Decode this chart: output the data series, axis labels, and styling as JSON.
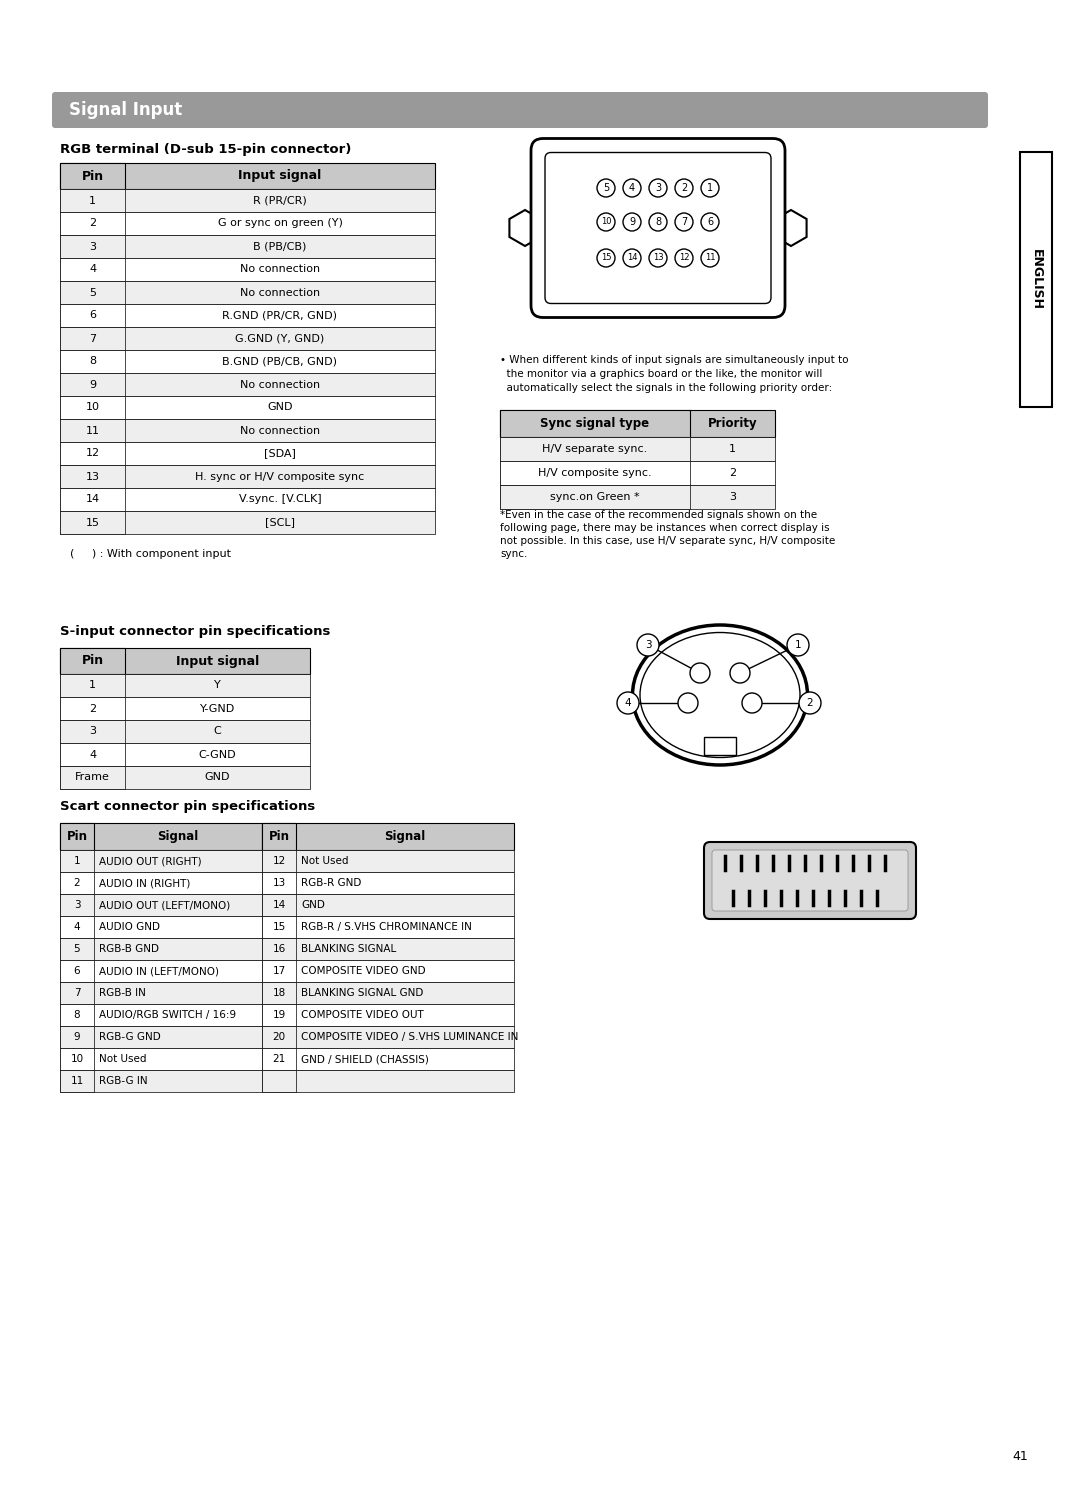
{
  "page_bg": "#ffffff",
  "title_bar_color": "#999999",
  "title_text": "Signal Input",
  "title_text_color": "#ffffff",
  "section1_title": "RGB terminal (D-sub 15-pin connector)",
  "section2_title": "S-input connector pin specifications",
  "section3_title": "Scart connector pin specifications",
  "rgb_table_headers": [
    "Pin",
    "Input signal"
  ],
  "rgb_table_data": [
    [
      "1",
      "R (PR/CR)"
    ],
    [
      "2",
      "G or sync on green (Y)"
    ],
    [
      "3",
      "B (PB/CB)"
    ],
    [
      "4",
      "No connection"
    ],
    [
      "5",
      "No connection"
    ],
    [
      "6",
      "R.GND (PR/CR, GND)"
    ],
    [
      "7",
      "G.GND (Y, GND)"
    ],
    [
      "8",
      "B.GND (PB/CB, GND)"
    ],
    [
      "9",
      "No connection"
    ],
    [
      "10",
      "GND"
    ],
    [
      "11",
      "No connection"
    ],
    [
      "12",
      "[SDA]"
    ],
    [
      "13",
      "H. sync or H/V composite sync"
    ],
    [
      "14",
      "V.sync. [V.CLK]"
    ],
    [
      "15",
      "[SCL]"
    ]
  ],
  "rgb_note": "(     ) : With component input",
  "sync_table_headers": [
    "Sync signal type",
    "Priority"
  ],
  "sync_table_data": [
    [
      "H/V separate sync.",
      "1"
    ],
    [
      "H/V composite sync.",
      "2"
    ],
    [
      "sync.on Green *",
      "3"
    ]
  ],
  "sync_note1_bullet": "• When different kinds of input signals are simultaneously input to",
  "sync_note1_line2": "  the monitor via a graphics board or the like, the monitor will",
  "sync_note1_line3": "  automatically select the signals in the following priority order:",
  "sync_note2": "*Even in the case of the recommended signals shown on the\nfollowing page, there may be instances when correct display is\nnot possible. In this case, use H/V separate sync, H/V composite\nsync.",
  "sinput_headers": [
    "Pin",
    "Input signal"
  ],
  "sinput_data": [
    [
      "1",
      "Y"
    ],
    [
      "2",
      "Y-GND"
    ],
    [
      "3",
      "C"
    ],
    [
      "4",
      "C-GND"
    ],
    [
      "Frame",
      "GND"
    ]
  ],
  "scart_data": [
    [
      "1",
      "AUDIO OUT (RIGHT)",
      "12",
      "Not Used"
    ],
    [
      "2",
      "AUDIO IN (RIGHT)",
      "13",
      "RGB-R GND"
    ],
    [
      "3",
      "AUDIO OUT (LEFT/MONO)",
      "14",
      "GND"
    ],
    [
      "4",
      "AUDIO GND",
      "15",
      "RGB-R / S.VHS CHROMINANCE IN"
    ],
    [
      "5",
      "RGB-B GND",
      "16",
      "BLANKING SIGNAL"
    ],
    [
      "6",
      "AUDIO IN (LEFT/MONO)",
      "17",
      "COMPOSITE VIDEO GND"
    ],
    [
      "7",
      "RGB-B IN",
      "18",
      "BLANKING SIGNAL GND"
    ],
    [
      "8",
      "AUDIO/RGB SWITCH / 16:9",
      "19",
      "COMPOSITE VIDEO OUT"
    ],
    [
      "9",
      "RGB-G GND",
      "20",
      "COMPOSITE VIDEO / S.VHS LUMINANCE IN"
    ],
    [
      "10",
      "Not Used",
      "21",
      "GND / SHIELD (CHASSIS)"
    ],
    [
      "11",
      "RGB-G IN",
      "",
      ""
    ]
  ],
  "page_number": "41",
  "english_text": "ENGLISH",
  "header_bg": "#c8c8c8",
  "table_border": "#000000",
  "row_even_bg": "#eeeeee",
  "row_odd_bg": "#ffffff"
}
